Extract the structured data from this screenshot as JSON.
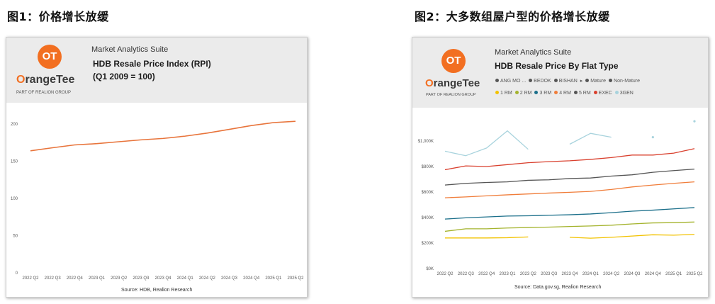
{
  "figure1": {
    "heading": "图1：价格增长放缓",
    "suite": "Market Analytics Suite",
    "title_line1": "HDB Resale Price Index (RPI)",
    "title_line2": "(Q1 2009 = 100)",
    "source": "Source: HDB, Realion Research"
  },
  "figure2": {
    "heading": "图2：大多数组屋户型的价格增长放缓",
    "suite": "Market Analytics Suite",
    "title": "HDB Resale Price By Flat Type",
    "source": "Source: Data.gov.sg, Realion Research",
    "filters": [
      {
        "label": "ANG MO ...",
        "color": "#555555"
      },
      {
        "label": "BEDOK",
        "color": "#555555"
      },
      {
        "label": "BISHAN",
        "color": "#555555"
      },
      {
        "label": "Mature",
        "color": "#555555"
      },
      {
        "label": "Non-Mature",
        "color": "#555555"
      }
    ],
    "more_glyph": "▸"
  },
  "logo": {
    "mark": "OT",
    "word_prefix": "",
    "word_o": "O",
    "word_rest": "rangeTee",
    "sub": "PART OF REALION GROUP",
    "color": "#f26f21"
  },
  "chart_data": [
    {
      "type": "line",
      "categories": [
        "2022 Q2",
        "2022 Q3",
        "2022 Q4",
        "2023 Q1",
        "2023 Q2",
        "2023 Q3",
        "2023 Q4",
        "2024 Q1",
        "2024 Q2",
        "2024 Q3",
        "2024 Q4",
        "2025 Q1",
        "2025 Q2"
      ],
      "series": [
        {
          "name": "",
          "color": "#e8743b",
          "values": [
            164.0,
            168.1,
            171.9,
            173.6,
            176.2,
            178.7,
            180.6,
            183.7,
            187.8,
            192.8,
            197.9,
            201.9,
            203.6
          ]
        }
      ],
      "ylim": [
        0,
        200
      ],
      "yticks": [
        0,
        50,
        100,
        150,
        200
      ]
    },
    {
      "type": "line",
      "categories": [
        "2022 Q2",
        "2022 Q3",
        "2022 Q4",
        "2023 Q1",
        "2023 Q2",
        "2023 Q3",
        "2023 Q4",
        "2024 Q1",
        "2024 Q2",
        "2024 Q3",
        "2024 Q4",
        "2025 Q1",
        "2025 Q2"
      ],
      "ylim": [
        0,
        1100000
      ],
      "yticks": [
        0,
        200000,
        400000,
        600000,
        800000,
        1000000
      ],
      "ytick_labels": [
        "$0K",
        "$200K",
        "$400K",
        "$600K",
        "$800K",
        "$1,000K"
      ],
      "series": [
        {
          "name": "1 RM",
          "color": "#f2c200",
          "values": [
            240000,
            240000,
            240000,
            242000,
            248000,
            null,
            245000,
            238000,
            245000,
            255000,
            265000,
            262000,
            268000
          ]
        },
        {
          "name": "2 RM",
          "color": "#a4b32d",
          "values": [
            292000,
            312000,
            312000,
            318000,
            322000,
            325000,
            330000,
            334000,
            340000,
            350000,
            358000,
            360000,
            365000
          ]
        },
        {
          "name": "3 RM",
          "color": "#1b6f8a",
          "values": [
            388000,
            398000,
            405000,
            412000,
            414000,
            418000,
            422000,
            428000,
            438000,
            450000,
            458000,
            468000,
            478000
          ]
        },
        {
          "name": "4 RM",
          "color": "#f07d3a",
          "values": [
            555000,
            562000,
            570000,
            578000,
            585000,
            592000,
            598000,
            605000,
            620000,
            640000,
            655000,
            668000,
            680000
          ]
        },
        {
          "name": "5 RM",
          "color": "#555555",
          "values": [
            655000,
            668000,
            675000,
            680000,
            692000,
            696000,
            706000,
            710000,
            725000,
            735000,
            755000,
            768000,
            780000
          ]
        },
        {
          "name": "EXEC",
          "color": "#d9402e",
          "values": [
            775000,
            805000,
            800000,
            815000,
            830000,
            838000,
            845000,
            856000,
            870000,
            890000,
            890000,
            905000,
            940000
          ]
        },
        {
          "name": "3GEN",
          "color": "#a8d3dd",
          "values": [
            920000,
            885000,
            945000,
            1080000,
            935000,
            null,
            975000,
            1060000,
            1030000,
            null,
            1030000,
            null,
            1155000
          ]
        }
      ]
    }
  ]
}
